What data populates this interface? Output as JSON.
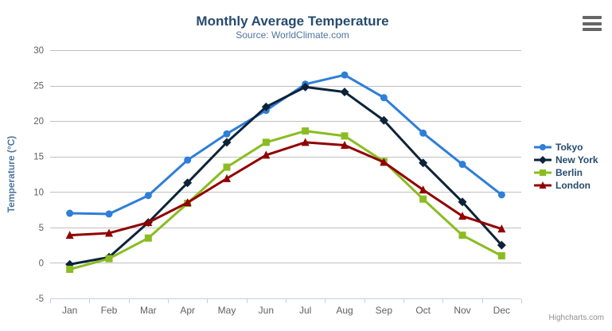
{
  "chart_data": {
    "type": "line",
    "title": "Monthly Average Temperature",
    "subtitle": "Source: WorldClimate.com",
    "xlabel": "",
    "ylabel": "Temperature (°C)",
    "categories": [
      "Jan",
      "Feb",
      "Mar",
      "Apr",
      "May",
      "Jun",
      "Jul",
      "Aug",
      "Sep",
      "Oct",
      "Nov",
      "Dec"
    ],
    "ylim": [
      -5,
      30
    ],
    "ytick_step": 5,
    "yticks": [
      -5,
      0,
      5,
      10,
      15,
      20,
      25,
      30
    ],
    "grid": true,
    "legend_position": "right",
    "series": [
      {
        "name": "Tokyo",
        "marker": "circle",
        "color": "#2f7ed8",
        "values": [
          7.0,
          6.9,
          9.5,
          14.5,
          18.2,
          21.5,
          25.2,
          26.5,
          23.3,
          18.3,
          13.9,
          9.6
        ]
      },
      {
        "name": "New York",
        "marker": "diamond",
        "color": "#0d233a",
        "values": [
          -0.2,
          0.8,
          5.7,
          11.3,
          17.0,
          22.0,
          24.8,
          24.1,
          20.1,
          14.1,
          8.6,
          2.5
        ]
      },
      {
        "name": "Berlin",
        "marker": "square",
        "color": "#8bbc21",
        "values": [
          -0.9,
          0.6,
          3.5,
          8.4,
          13.5,
          17.0,
          18.6,
          17.9,
          14.3,
          9.0,
          3.9,
          1.0
        ]
      },
      {
        "name": "London",
        "marker": "triangle",
        "color": "#910000",
        "values": [
          3.9,
          4.2,
          5.7,
          8.5,
          11.9,
          15.2,
          17.0,
          16.6,
          14.2,
          10.3,
          6.6,
          4.8
        ]
      }
    ]
  },
  "credits": {
    "label": "Highcharts.com"
  },
  "menu_icon": {
    "name": "hamburger-menu-icon"
  },
  "colors": {
    "title_text": "#274b6d",
    "subtitle_text": "#4d759e",
    "axis_title_text": "#4d759e",
    "axis_label_text": "#606060",
    "grid_line": "#C0C0C0",
    "axis_line": "#C0D0E0",
    "legend_text": "#274b6d",
    "credits_text": "#909090",
    "menu_icon_bars": "#666666",
    "background": "#ffffff"
  }
}
